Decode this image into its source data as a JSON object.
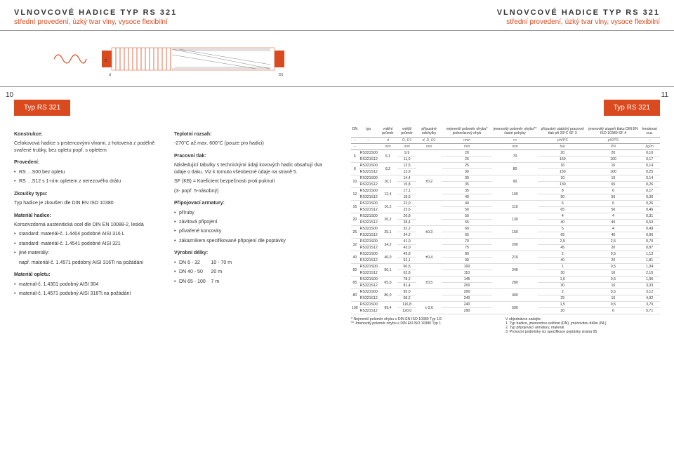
{
  "header": {
    "title": "VLNOVCOVÉ HADICE TYP RS 321",
    "sub": "střední provedení, úzký tvar vlny, vysoce flexibilní"
  },
  "pagenum_left": "10",
  "pagenum_right": "11",
  "badge": "Typ RS 321",
  "left": {
    "konstrukce_title": "Konstrukce:",
    "konstrukce_text": "Celokovová hadice s prstencovými vlnami, z hotovená z podélně svařené trubky, bez opletu popř. s opletem",
    "provedeni_title": "Provedení:",
    "provedeni_b1": "RS …S00 bez opletu",
    "provedeni_b2": "RS …S12 s 1-ním opletem z nerezového drátu",
    "zkousky_title": "Zkoušky typu:",
    "zkousky_text": "Typ hadice je zkoušen dle DIN EN ISO 10380",
    "material_hadice_title": "Materiál hadice:",
    "material_hadice_text": "Korozivzdorná austenitická ocel dle DIN EN 10088-2, lesklá",
    "material_hadice_b1": "standard: materiál-č. 1.4404 podobné AISI 316 L",
    "material_hadice_b2": "standard: materiál-č. 1.4541 podobné AISI 321",
    "material_hadice_b3": "jiné materiály:",
    "material_hadice_b3b": "např. materiál-č. 1.4571 podobný AISI 316Ti na požádání",
    "material_opletu_title": "Materiál opletu:",
    "material_opletu_b1": "materiál-č. 1.4301 podobný AISI 304",
    "material_opletu_b2": "materiál-č. 1.4571 podobný AISI 316Ti na požádání",
    "teplotni_title": "Teplotní rozsah:",
    "teplotni_text": "-270°C až max. 600°C (pouze pro hadici)",
    "pracovni_title": "Pracovní tlak:",
    "pracovni_text": "Následující tabulky s technickými údaji kovových hadic obsahují dva údaje o tlaku. Viz k tomuto všeobecné údaje na straně 5.",
    "pracovni_text2": "SF (KB) = Koeficient bezpečnosti proti puknutí",
    "pracovni_text3": "(3- popř. 5-násobný)",
    "pripoj_title": "Připojovací armatury:",
    "pripoj_b1": "příruby",
    "pripoj_b2": "závitová připojení",
    "pripoj_b3": "přivařené koncovky",
    "pripoj_b4": "zákazníkem specifikované připojení dle poptávky",
    "vyrobni_title": "Výrobní délky:",
    "vyrobni_b1a": "DN 6 - 32",
    "vyrobni_b1b": "10 - 70 m",
    "vyrobni_b2a": "DN 40 - 50",
    "vyrobni_b2b": "20 m",
    "vyrobni_b3a": "DN 65 - 100",
    "vyrobni_b3b": "7 m"
  },
  "table": {
    "head": {
      "dn": "DN",
      "typ": "typ",
      "vnitrni": "vnitřní průměr",
      "vnejsi": "vnější průměr",
      "odchylky": "přípustné odchylky",
      "nejm": "nejmenší poloměr ohybu* jednorázový ohyb",
      "jmen": "jmenovitý poloměr ohybu** časté pohyby",
      "stat": "přípustný statický pracovní tlak při 20°C SF 3",
      "stup": "jmenovitý stupeň tlaku DIN EN ISO 10380 SF 4",
      "hm": "hmotnost cca."
    },
    "sub": {
      "dash": "–",
      "d": "d",
      "dd1": "D, D1",
      "dd2": "d, D, D1",
      "rmin": "rmin",
      "rn": "rn",
      "pnps": "pN/PS",
      "dash2": "–"
    },
    "units": {
      "mm": "mm",
      "bar": "bar",
      "pn": "PN",
      "kgm": "kg/m"
    },
    "rows": [
      {
        "dn": "6",
        "t1": "RS321S00",
        "t2": "RS321S12",
        "vi": "6,1",
        "ve1": "9,9",
        "ve2": "11,0",
        "od": "",
        "n1": "20",
        "n2": "25",
        "j": "70",
        "s1": "20",
        "s2": "150",
        "st1": "20",
        "st2": "100",
        "h1": "0,10",
        "h2": "0,17"
      },
      {
        "dn": "8",
        "t1": "RS321S00",
        "t2": "RS321S12",
        "vi": "8,2",
        "ve1": "12,5",
        "ve2": "13,9",
        "od": "",
        "n1": "25",
        "n2": "30",
        "j": "80",
        "s1": "16",
        "s2": "150",
        "st1": "16",
        "st2": "100",
        "h1": "0,14",
        "h2": "0,25"
      },
      {
        "dn": "10",
        "t1": "RS321S00",
        "t2": "RS321S12",
        "vi": "10,1",
        "ve1": "14,4",
        "ve2": "15,8",
        "od": "±0,2",
        "n1": "30",
        "n2": "35",
        "j": "90",
        "s1": "10",
        "s2": "130",
        "st1": "10",
        "st2": "65",
        "h1": "0,14",
        "h2": "0,26"
      },
      {
        "dn": "12",
        "t1": "RS321S00",
        "t2": "RS321S12",
        "vi": "12,4",
        "ve1": "17,1",
        "ve2": "18,5",
        "od": "",
        "n1": "35",
        "n2": "40",
        "j": "100",
        "s1": "8",
        "s2": "90",
        "st1": "6",
        "st2": "50",
        "h1": "0,17",
        "h2": "0,30"
      },
      {
        "dn": "16",
        "t1": "RS321S00",
        "t2": "RS321S12",
        "vi": "16,2",
        "ve1": "22,0",
        "ve2": "23,6",
        "od": "",
        "n1": "40",
        "n2": "50",
        "j": "110",
        "s1": "6",
        "s2": "65",
        "st1": "6",
        "st2": "50",
        "h1": "0,26",
        "h2": "0,46"
      },
      {
        "dn": "20",
        "t1": "RS321S00",
        "t2": "RS321S12",
        "vi": "20,2",
        "ve1": "26,8",
        "ve2": "28,4",
        "od": "",
        "n1": "50",
        "n2": "55",
        "j": "130",
        "s1": "4",
        "s2": "40",
        "st1": "4",
        "st2": "40",
        "h1": "0,31",
        "h2": "0,53"
      },
      {
        "dn": "25",
        "t1": "RS321S00",
        "t2": "RS321S12",
        "vi": "25,1",
        "ve1": "32,2",
        "ve2": "34,2",
        "od": "±0,3",
        "n1": "60",
        "n2": "65",
        "j": "150",
        "s1": "5",
        "s2": "65",
        "st1": "4",
        "st2": "40",
        "h1": "0,49",
        "h2": "0,90"
      },
      {
        "dn": "32",
        "t1": "RS321S00",
        "t2": "RS321S12",
        "vi": "34,2",
        "ve1": "41,0",
        "ve2": "43,0",
        "od": "",
        "n1": "70",
        "n2": "75",
        "j": "200",
        "s1": "2,5",
        "s2": "45",
        "st1": "2,5",
        "st2": "20",
        "h1": "0,70",
        "h2": "0,97"
      },
      {
        "dn": "40",
        "t1": "RS321S00",
        "t2": "RS321S12",
        "vi": "40,0",
        "ve1": "49,8",
        "ve2": "52,1",
        "od": "±0,4",
        "n1": "80",
        "n2": "90",
        "j": "210",
        "s1": "2",
        "s2": "40",
        "st1": "0,5",
        "st2": "20",
        "h1": "1,13",
        "h2": "1,81"
      },
      {
        "dn": "50",
        "t1": "RS321S00",
        "t2": "RS321S12",
        "vi": "50,1",
        "ve1": "60,5",
        "ve2": "62,8",
        "od": "",
        "n1": "100",
        "n2": "110",
        "j": "240",
        "s1": "1",
        "s2": "30",
        "st1": "0,5",
        "st2": "16",
        "h1": "1,34",
        "h2": "2,10"
      },
      {
        "dn": "65",
        "t1": "RS321S00",
        "t2": "RS321S12",
        "vi": "65,0",
        "ve1": "78,2",
        "ve2": "81,4",
        "od": "±0,5",
        "n1": "145",
        "n2": "200",
        "j": "280",
        "s1": "1,5",
        "s2": "30",
        "st1": "0,5",
        "st2": "16",
        "h1": "1,96",
        "h2": "3,33"
      },
      {
        "dn": "80",
        "t1": "RS321S00",
        "t2": "RS321S12",
        "vi": "80,0",
        "ve1": "95,0",
        "ve2": "98,2",
        "od": "",
        "n1": "200",
        "n2": "240",
        "j": "400",
        "s1": "2",
        "s2": "25",
        "st1": "0,5",
        "st2": "10",
        "h1": "3,12",
        "h2": "4,92"
      },
      {
        "dn": "100",
        "t1": "RS321S00",
        "t2": "RS321S12",
        "vi": "99,4",
        "ve1": "116,8",
        "ve2": "120,0",
        "od": "± 0,6",
        "n1": "240",
        "n2": "290",
        "j": "500",
        "s1": "1,5",
        "s2": "20",
        "st1": "0,5",
        "st2": "6",
        "h1": "3,70",
        "h2": "5,71"
      }
    ],
    "foot_left1": "* Nejmenší poloměr ohybu ≤ DIN EN ISO 10380 Typ 1/2",
    "foot_left2": "** Jmenovitý poloměr ohybu ≤ DIN EN ISO 10380 Typ 1",
    "foot_right_t": "V objednávce zadejte:",
    "foot_right_1": "1. Typ hadice, jmenovitou světlost (DN), jmenovitou délku (NL)",
    "foot_right_2": "2. Typ připojovací armatury, materiál",
    "foot_right_3": "3. Provozní podmínky viz specifikace poptávky strana 95"
  }
}
